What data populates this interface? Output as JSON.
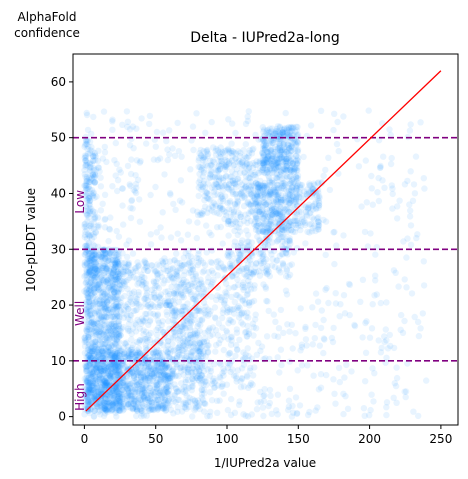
{
  "chart_data": {
    "type": "scatter",
    "title": "Delta - IUPred2a-long",
    "xlabel": "1/IUPred2a value",
    "ylabel": "100-pLDDT value",
    "corner_label_line1": "AlphaFold",
    "corner_label_line2": "confidence",
    "xlim": [
      -8,
      262
    ],
    "ylim": [
      -1.5,
      65
    ],
    "x_ticks": [
      0,
      50,
      100,
      150,
      200,
      250
    ],
    "y_ticks": [
      0,
      10,
      20,
      30,
      40,
      50,
      60
    ],
    "grid": false,
    "point_color": "#1e90ff",
    "point_alpha": 0.1,
    "reference_line": {
      "color": "#ff0000",
      "from": [
        1,
        1
      ],
      "to": [
        250,
        62
      ]
    },
    "thresholds": [
      {
        "y": 10,
        "color": "#800080",
        "style": "dashed"
      },
      {
        "y": 30,
        "color": "#800080",
        "style": "dashed"
      },
      {
        "y": 50,
        "color": "#800080",
        "style": "dashed"
      }
    ],
    "band_labels": [
      {
        "text": "High",
        "y_center": 3.5
      },
      {
        "text": "Well",
        "y_center": 18.5
      },
      {
        "text": "Low",
        "y_center": 38.5
      }
    ],
    "density_regions": [
      {
        "xr": [
          1,
          25
        ],
        "yr": [
          1,
          30
        ],
        "n": 900
      },
      {
        "xr": [
          1,
          60
        ],
        "yr": [
          1,
          12
        ],
        "n": 700
      },
      {
        "xr": [
          20,
          85
        ],
        "yr": [
          1,
          28
        ],
        "n": 700
      },
      {
        "xr": [
          60,
          120
        ],
        "yr": [
          5,
          30
        ],
        "n": 350
      },
      {
        "xr": [
          80,
          150
        ],
        "yr": [
          36,
          48
        ],
        "n": 500
      },
      {
        "xr": [
          120,
          165
        ],
        "yr": [
          33,
          42
        ],
        "n": 300
      },
      {
        "xr": [
          125,
          150
        ],
        "yr": [
          44,
          52
        ],
        "n": 250
      },
      {
        "xr": [
          100,
          145
        ],
        "yr": [
          25,
          36
        ],
        "n": 200
      },
      {
        "xr": [
          0,
          8
        ],
        "yr": [
          25,
          50
        ],
        "n": 150
      }
    ],
    "sparse_region": {
      "xr": [
        0,
        240
      ],
      "yr": [
        0,
        55
      ],
      "n": 900
    }
  }
}
